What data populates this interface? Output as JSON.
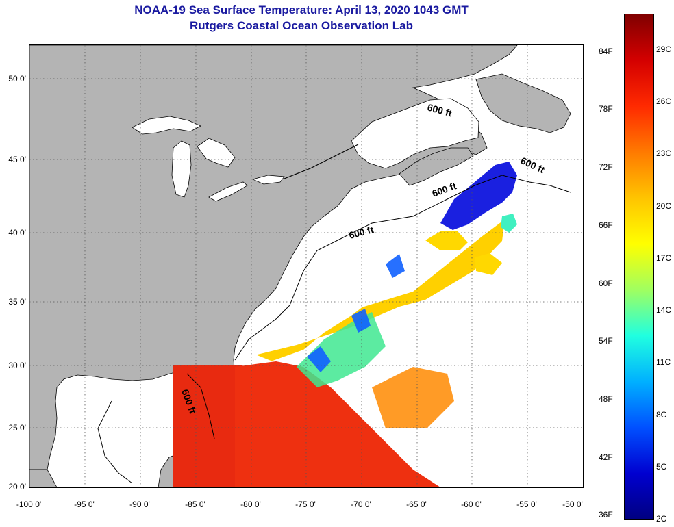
{
  "header": {
    "title_line1": "NOAA-19 Sea Surface Temperature:  April 13, 2020 1043 GMT",
    "title_line2": "Rutgers Coastal Ocean Observation Lab",
    "title_color": "#1a1aa0"
  },
  "map": {
    "longitudes": [
      -100,
      -95,
      -90,
      -85,
      -80,
      -75,
      -70,
      -65,
      -60,
      -55,
      -50
    ],
    "longitude_labels": [
      "-100 0'",
      "-95 0'",
      "-90 0'",
      "-85 0'",
      "-80 0'",
      "-75 0'",
      "-70 0'",
      "-65 0'",
      "-60 0'",
      "-55 0'",
      "-50 0'"
    ],
    "latitudes": [
      50,
      45,
      40,
      35,
      30,
      25,
      20
    ],
    "latitude_labels": [
      "50 0'",
      "45 0'",
      "40 0'",
      "35 0'",
      "30 0'",
      "25 0'",
      "20 0'"
    ],
    "lon_range": [
      -100,
      -50
    ],
    "lat_range": [
      20,
      52.5
    ],
    "isobath_labels": [
      "600 ft",
      "600 ft",
      "600 ft",
      "600 ft",
      "600 ft"
    ],
    "land_color": "#b4b4b4",
    "water_color": "#ffffff"
  },
  "colorbar": {
    "fahrenheit_labels": [
      "84F",
      "78F",
      "72F",
      "66F",
      "60F",
      "54F",
      "48F",
      "42F",
      "36F"
    ],
    "celsius_labels": [
      "29C",
      "26C",
      "23C",
      "20C",
      "17C",
      "14C",
      "11C",
      "8C",
      "5C",
      "2C"
    ],
    "celsius_values": [
      29,
      26,
      23,
      20,
      17,
      14,
      11,
      8,
      5,
      2
    ],
    "fahrenheit_values": [
      84,
      78,
      72,
      66,
      60,
      54,
      48,
      42,
      36
    ],
    "c_range": [
      2,
      31
    ],
    "colors": [
      "#800000",
      "#d40000",
      "#ff2a00",
      "#ff7a00",
      "#ffc400",
      "#ffff00",
      "#a0ff60",
      "#20ffe0",
      "#00b0ff",
      "#0050ff",
      "#0000d0",
      "#000080"
    ]
  }
}
